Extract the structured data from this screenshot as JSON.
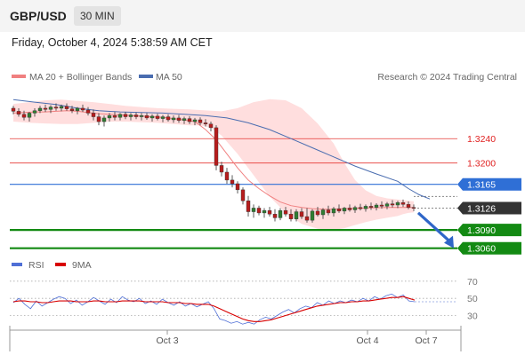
{
  "header": {
    "pair": "GBP/USD",
    "timeframe": "30 MIN"
  },
  "date_text": "Friday, October 4, 2024 5:38:59 AM CET",
  "legend": {
    "ma20_label": "MA 20 + Bollinger Bands",
    "ma50_label": "MA 50",
    "credit": "Research © 2024 Trading Central",
    "rsi_label": "RSI",
    "ma9_label": "9MA"
  },
  "colors": {
    "ma20": "#f08080",
    "ma50": "#4a6db0",
    "band": "#ffd6d6",
    "up": "#2e7d32",
    "down": "#b71c1c",
    "resistance": "#e53935",
    "pivot": "#2f6fd6",
    "support": "#138a13",
    "current": "#333333",
    "rsi": "#4f6fd6",
    "rsi_ma": "#d80000"
  },
  "chart_data": [
    {
      "type": "line",
      "title": "GBP/USD 30 MIN",
      "ylim": [
        1.3045,
        1.3322
      ],
      "x_ticks": [
        "Oct 3",
        "Oct 4",
        "Oct 7"
      ],
      "candles": [
        [
          1.329,
          1.3294,
          1.328,
          1.3285
        ],
        [
          1.3285,
          1.329,
          1.3276,
          1.328
        ],
        [
          1.328,
          1.3286,
          1.327,
          1.3275
        ],
        [
          1.3275,
          1.3284,
          1.3268,
          1.3282
        ],
        [
          1.3282,
          1.329,
          1.3276,
          1.3286
        ],
        [
          1.3286,
          1.3294,
          1.3282,
          1.329
        ],
        [
          1.329,
          1.3296,
          1.3284,
          1.3288
        ],
        [
          1.3288,
          1.3295,
          1.3282,
          1.3292
        ],
        [
          1.3292,
          1.3298,
          1.3286,
          1.329
        ],
        [
          1.329,
          1.3296,
          1.3285,
          1.3293
        ],
        [
          1.3293,
          1.3298,
          1.3286,
          1.3289
        ],
        [
          1.3289,
          1.3294,
          1.3282,
          1.3286
        ],
        [
          1.3286,
          1.3292,
          1.328,
          1.329
        ],
        [
          1.329,
          1.3296,
          1.3284,
          1.3287
        ],
        [
          1.3287,
          1.3292,
          1.3278,
          1.3282
        ],
        [
          1.3282,
          1.3288,
          1.327,
          1.3276
        ],
        [
          1.3276,
          1.3282,
          1.3262,
          1.3268
        ],
        [
          1.3268,
          1.3278,
          1.326,
          1.3274
        ],
        [
          1.3274,
          1.3282,
          1.3268,
          1.3278
        ],
        [
          1.3278,
          1.3284,
          1.327,
          1.3275
        ],
        [
          1.3275,
          1.3282,
          1.327,
          1.328
        ],
        [
          1.328,
          1.3284,
          1.3272,
          1.3276
        ],
        [
          1.3276,
          1.3282,
          1.327,
          1.3279
        ],
        [
          1.3279,
          1.3283,
          1.3272,
          1.3276
        ],
        [
          1.3276,
          1.3282,
          1.327,
          1.3278
        ],
        [
          1.3278,
          1.3282,
          1.3271,
          1.3274
        ],
        [
          1.3274,
          1.328,
          1.3268,
          1.3277
        ],
        [
          1.3277,
          1.3281,
          1.327,
          1.3273
        ],
        [
          1.3273,
          1.3279,
          1.3267,
          1.3276
        ],
        [
          1.3276,
          1.328,
          1.3268,
          1.3271
        ],
        [
          1.3271,
          1.3278,
          1.3266,
          1.3274
        ],
        [
          1.3274,
          1.3279,
          1.3266,
          1.327
        ],
        [
          1.327,
          1.3276,
          1.3264,
          1.3273
        ],
        [
          1.3273,
          1.3277,
          1.3264,
          1.3268
        ],
        [
          1.3268,
          1.3274,
          1.3262,
          1.3271
        ],
        [
          1.3271,
          1.3275,
          1.3262,
          1.3266
        ],
        [
          1.3266,
          1.3272,
          1.326,
          1.3264
        ],
        [
          1.3264,
          1.3268,
          1.3252,
          1.3258
        ],
        [
          1.3258,
          1.3262,
          1.3188,
          1.3196
        ],
        [
          1.3196,
          1.3202,
          1.3178,
          1.3185
        ],
        [
          1.3185,
          1.3192,
          1.3166,
          1.3172
        ],
        [
          1.3172,
          1.318,
          1.316,
          1.3166
        ],
        [
          1.3166,
          1.317,
          1.315,
          1.3156
        ],
        [
          1.3156,
          1.316,
          1.3132,
          1.3138
        ],
        [
          1.3138,
          1.3146,
          1.3112,
          1.312
        ],
        [
          1.312,
          1.3132,
          1.311,
          1.3126
        ],
        [
          1.3126,
          1.313,
          1.3114,
          1.3118
        ],
        [
          1.3118,
          1.3126,
          1.311,
          1.3122
        ],
        [
          1.3122,
          1.3128,
          1.3112,
          1.3116
        ],
        [
          1.3116,
          1.3124,
          1.3104,
          1.311
        ],
        [
          1.311,
          1.3126,
          1.3106,
          1.3122
        ],
        [
          1.3122,
          1.3128,
          1.3112,
          1.3116
        ],
        [
          1.3116,
          1.3124,
          1.3104,
          1.3108
        ],
        [
          1.3108,
          1.3124,
          1.3104,
          1.312
        ],
        [
          1.312,
          1.3126,
          1.3108,
          1.3112
        ],
        [
          1.3112,
          1.3126,
          1.3102,
          1.3106
        ],
        [
          1.3106,
          1.3124,
          1.3102,
          1.3121
        ],
        [
          1.3121,
          1.3128,
          1.3112,
          1.3115
        ],
        [
          1.3115,
          1.3126,
          1.3108,
          1.3123
        ],
        [
          1.3123,
          1.313,
          1.3114,
          1.3118
        ],
        [
          1.3118,
          1.3128,
          1.3112,
          1.3125
        ],
        [
          1.3125,
          1.3132,
          1.3118,
          1.3121
        ],
        [
          1.3121,
          1.3128,
          1.3116,
          1.3126
        ],
        [
          1.3126,
          1.3132,
          1.312,
          1.3123
        ],
        [
          1.3123,
          1.313,
          1.3118,
          1.3127
        ],
        [
          1.3127,
          1.3133,
          1.3122,
          1.3125
        ],
        [
          1.3125,
          1.3132,
          1.312,
          1.3129
        ],
        [
          1.3129,
          1.3135,
          1.3123,
          1.3127
        ],
        [
          1.3127,
          1.3134,
          1.3122,
          1.3131
        ],
        [
          1.3131,
          1.3137,
          1.3125,
          1.3129
        ],
        [
          1.3129,
          1.3136,
          1.3124,
          1.3133
        ],
        [
          1.3133,
          1.3139,
          1.3127,
          1.3131
        ],
        [
          1.3131,
          1.3138,
          1.3126,
          1.3135
        ],
        [
          1.3135,
          1.314,
          1.3128,
          1.3132
        ],
        [
          1.3132,
          1.3137,
          1.3124,
          1.3127
        ],
        [
          1.3127,
          1.3132,
          1.3121,
          1.3126
        ]
      ],
      "ma20": [
        1.3282,
        1.3283,
        1.3284,
        1.3284,
        1.3285,
        1.3286,
        1.3285,
        1.3283,
        1.3281,
        1.328,
        1.3279,
        1.3278,
        1.3277,
        1.3276,
        1.3275,
        1.3273,
        1.3268,
        1.3255,
        1.3238,
        1.3215,
        1.3192,
        1.3172,
        1.3158,
        1.3146,
        1.3136,
        1.313,
        1.3127,
        1.3125,
        1.3124,
        1.3124,
        1.3125,
        1.3126,
        1.3127,
        1.3127
      ],
      "ma20_x": [
        0,
        2,
        4,
        6,
        8,
        10,
        12,
        14,
        16,
        18,
        20,
        22,
        24,
        26,
        28,
        30,
        34,
        36,
        38,
        40,
        42,
        44,
        46,
        48,
        50,
        52,
        54,
        56,
        58,
        60,
        62,
        66,
        70,
        75
      ],
      "band_upper": [
        1.3297,
        1.33,
        1.3303,
        1.3304,
        1.3302,
        1.33,
        1.3297,
        1.3294,
        1.3292,
        1.329,
        1.3289,
        1.3288,
        1.3287,
        1.3286,
        1.3285,
        1.329,
        1.33,
        1.3305,
        1.3303,
        1.329,
        1.3265,
        1.3232,
        1.32,
        1.3172,
        1.3155,
        1.3146,
        1.3142,
        1.314,
        1.3139,
        1.3138,
        1.3137
      ],
      "band_lower": [
        1.3268,
        1.3266,
        1.3265,
        1.3264,
        1.3264,
        1.3266,
        1.3268,
        1.3268,
        1.3267,
        1.3266,
        1.3264,
        1.3262,
        1.3262,
        1.3258,
        1.3245,
        1.3215,
        1.318,
        1.3145,
        1.3118,
        1.31,
        1.3092,
        1.309,
        1.3093,
        1.3098,
        1.3103,
        1.3107,
        1.311,
        1.3113,
        1.3116,
        1.3118,
        1.3119
      ],
      "band_x": [
        0,
        3,
        6,
        9,
        12,
        15,
        18,
        21,
        24,
        27,
        30,
        33,
        35,
        37,
        39,
        42,
        45,
        48,
        51,
        54,
        57,
        60,
        62,
        64,
        66,
        68,
        70,
        72,
        73,
        74,
        75
      ],
      "ma50": [
        1.3304,
        1.33,
        1.3296,
        1.329,
        1.3286,
        1.3284,
        1.3283,
        1.3282,
        1.328,
        1.3278,
        1.3274,
        1.3266,
        1.3255,
        1.324,
        1.3225,
        1.321,
        1.3195,
        1.3182,
        1.317,
        1.3158,
        1.3148,
        1.3141
      ],
      "ma50_x": [
        0,
        4,
        8,
        12,
        16,
        20,
        24,
        28,
        32,
        36,
        40,
        44,
        48,
        52,
        56,
        60,
        64,
        68,
        72,
        74,
        76,
        78
      ],
      "levels": [
        {
          "value": 1.324,
          "label": "1.3240",
          "kind": "resistance"
        },
        {
          "value": 1.32,
          "label": "1.3200",
          "kind": "resistance"
        },
        {
          "value": 1.3165,
          "label": "1.3165",
          "kind": "pivot"
        },
        {
          "value": 1.3126,
          "label": "1.3126",
          "kind": "current"
        },
        {
          "value": 1.309,
          "label": "1.3090",
          "kind": "support"
        },
        {
          "value": 1.306,
          "label": "1.3060",
          "kind": "support"
        }
      ],
      "forecast": {
        "from": 1.3124,
        "to": 1.3063,
        "direction": "down"
      }
    },
    {
      "type": "line",
      "title": "RSI",
      "ylim": [
        15,
        75
      ],
      "y_ticks": [
        70,
        50,
        30
      ],
      "rsi": [
        45,
        50,
        43,
        38,
        47,
        41,
        45,
        49,
        52,
        50,
        44,
        48,
        42,
        46,
        51,
        47,
        43,
        49,
        45,
        52,
        48,
        46,
        50,
        44,
        47,
        43,
        49,
        45,
        42,
        46,
        41,
        44,
        40,
        43,
        46,
        38,
        26,
        24,
        21,
        23,
        20,
        22,
        20,
        25,
        28,
        26,
        30,
        34,
        37,
        33,
        38,
        41,
        39,
        45,
        42,
        47,
        44,
        47,
        45,
        48,
        46,
        50,
        47,
        52,
        49,
        53,
        55,
        51,
        54,
        47,
        46
      ],
      "rsi_ma": [
        46,
        47,
        47,
        46,
        46,
        45,
        45,
        46,
        47,
        47,
        47,
        46,
        46,
        46,
        47,
        47,
        46,
        46,
        46,
        47,
        47,
        47,
        47,
        46,
        46,
        46,
        46,
        45,
        45,
        45,
        44,
        44,
        43,
        43,
        43,
        41,
        38,
        35,
        32,
        29,
        26,
        24,
        23,
        23,
        24,
        25,
        27,
        29,
        31,
        33,
        35,
        37,
        39,
        41,
        42,
        43,
        44,
        45,
        45,
        46,
        46,
        47,
        47,
        48,
        49,
        50,
        51,
        51,
        52,
        50,
        48
      ]
    }
  ]
}
